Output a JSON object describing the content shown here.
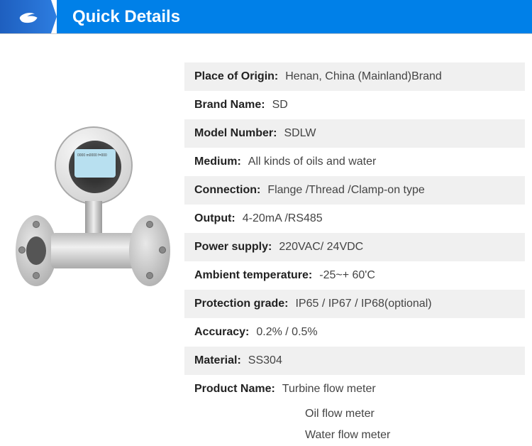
{
  "header": {
    "title": "Quick Details"
  },
  "specs": [
    {
      "label": "Place of Origin:",
      "value": "Henan, China (Mainland)Brand"
    },
    {
      "label": "Brand Name:",
      "value": "SD"
    },
    {
      "label": "Model Number:",
      "value": "SDLW"
    },
    {
      "label": "Medium:",
      "value": "All kinds of oils and water"
    },
    {
      "label": "Connection:",
      "value": "Flange /Thread /Clamp-on type"
    },
    {
      "label": "Output:",
      "value": "4-20mA /RS485"
    },
    {
      "label": "Power supply:",
      "value": "220VAC/ 24VDC"
    },
    {
      "label": "Ambient temperature:",
      "value": "-25~+ 60'C"
    },
    {
      "label": "Protection grade:",
      "value": "IP65 / IP67 / IP68(optional)"
    },
    {
      "label": "Accuracy:",
      "value": "0.2% / 0.5%"
    },
    {
      "label": "Material:",
      "value": "SS304"
    },
    {
      "label": "Product Name:",
      "value": "Turbine flow meter"
    }
  ],
  "sub_values": [
    "Oil flow meter",
    "Water flow meter"
  ],
  "lcd_text": "0000\nm0000\nf=000",
  "colors": {
    "header_bg": "#0080e8",
    "header_text": "#ffffff",
    "row_odd_bg": "#f0f0f0",
    "row_even_bg": "#ffffff",
    "label_color": "#222222",
    "value_color": "#444444"
  }
}
